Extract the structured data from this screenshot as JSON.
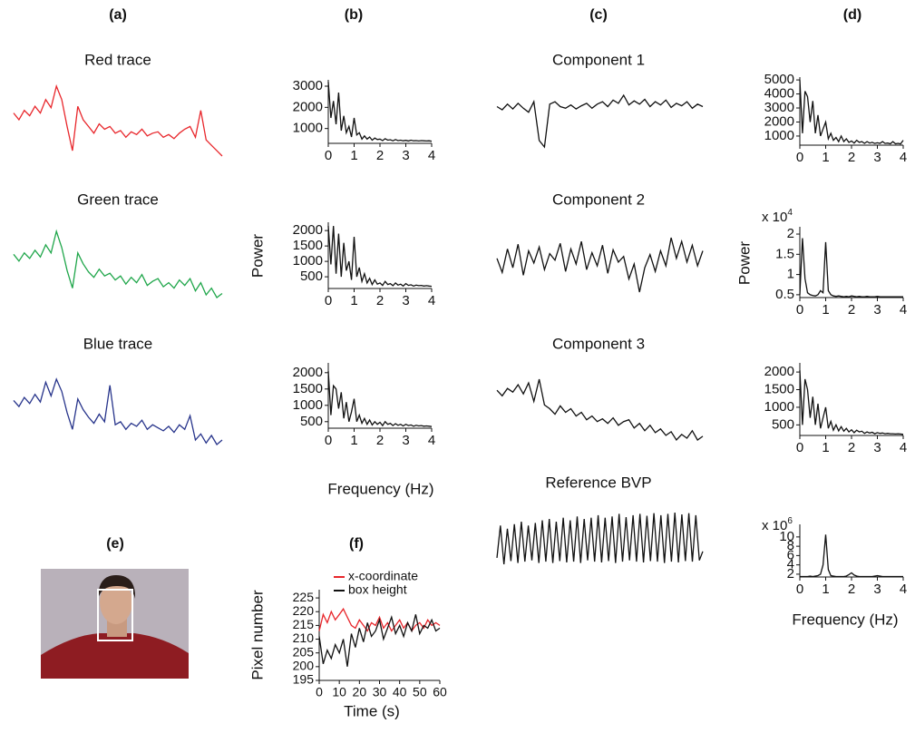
{
  "panel_labels": [
    "(a)",
    "(b)",
    "(c)",
    "(d)",
    "(e)",
    "(f)"
  ],
  "chart_data": [
    {
      "type": "line",
      "title": "Red trace",
      "color": "#e8262b",
      "values": [
        7,
        6.5,
        7.2,
        6.8,
        7.5,
        7,
        8,
        7.4,
        9,
        8,
        6,
        4.2,
        7.5,
        6.5,
        6,
        5.5,
        6.2,
        5.8,
        6,
        5.5,
        5.7,
        5.2,
        5.6,
        5.4,
        5.8,
        5.3,
        5.5,
        5.6,
        5.2,
        5.4,
        5.1,
        5.5,
        5.8,
        6,
        5.2,
        7.2,
        5,
        4.6,
        4.2,
        3.8
      ]
    },
    {
      "type": "line",
      "title": "Green trace",
      "color": "#1fa64a",
      "values": [
        7.5,
        7,
        7.6,
        7.2,
        7.8,
        7.3,
        8.2,
        7.6,
        9.2,
        8,
        6.3,
        5,
        7.6,
        6.8,
        6.2,
        5.8,
        6.4,
        5.9,
        6.1,
        5.6,
        5.9,
        5.3,
        5.8,
        5.4,
        6,
        5.2,
        5.5,
        5.7,
        5.1,
        5.4,
        5,
        5.6,
        5.2,
        5.7,
        4.8,
        5.4,
        4.5,
        5,
        4.3,
        4.6
      ]
    },
    {
      "type": "line",
      "title": "Blue trace",
      "color": "#27348b",
      "values": [
        7.2,
        6.8,
        7.4,
        7,
        7.6,
        7.1,
        8.4,
        7.5,
        8.6,
        7.8,
        6.4,
        5.3,
        7.3,
        6.6,
        6.1,
        5.7,
        6.3,
        5.8,
        8.2,
        5.6,
        5.8,
        5.3,
        5.7,
        5.5,
        5.9,
        5.3,
        5.6,
        5.4,
        5.2,
        5.5,
        5.1,
        5.6,
        5.3,
        6.2,
        4.6,
        5,
        4.4,
        4.9,
        4.3,
        4.6
      ]
    },
    {
      "type": "line",
      "color": "#111111",
      "x": [
        0,
        0.1,
        0.2,
        0.3,
        0.4,
        0.5,
        0.6,
        0.7,
        0.8,
        0.9,
        1,
        1.1,
        1.2,
        1.3,
        1.4,
        1.5,
        1.6,
        1.7,
        1.8,
        1.9,
        2,
        2.1,
        2.2,
        2.3,
        2.4,
        2.5,
        2.6,
        2.7,
        2.8,
        2.9,
        3,
        3.1,
        3.2,
        3.3,
        3.4,
        3.5,
        3.6,
        3.7,
        3.8,
        3.9,
        4
      ],
      "values": [
        3200,
        1500,
        2300,
        1200,
        2700,
        900,
        1600,
        800,
        1100,
        600,
        1500,
        700,
        800,
        500,
        650,
        500,
        600,
        450,
        550,
        480,
        500,
        430,
        520,
        450,
        470,
        420,
        480,
        430,
        450,
        420,
        440,
        410,
        450,
        420,
        430,
        410,
        430,
        420,
        410,
        420,
        400
      ],
      "xlim": [
        0,
        4
      ],
      "xticks": [
        0,
        1,
        2,
        3,
        4
      ],
      "ylim": [
        300,
        3300
      ],
      "yticks": [
        1000,
        2000,
        3000
      ]
    },
    {
      "type": "line",
      "color": "#111111",
      "ylabel": "Power",
      "x": [
        0,
        0.1,
        0.2,
        0.3,
        0.4,
        0.5,
        0.6,
        0.7,
        0.8,
        0.9,
        1,
        1.1,
        1.2,
        1.3,
        1.4,
        1.5,
        1.6,
        1.7,
        1.8,
        1.9,
        2,
        2.1,
        2.2,
        2.3,
        2.4,
        2.5,
        2.6,
        2.7,
        2.8,
        2.9,
        3,
        3.1,
        3.2,
        3.3,
        3.4,
        3.5,
        3.6,
        3.7,
        3.8,
        3.9,
        4
      ],
      "values": [
        2150,
        900,
        2150,
        600,
        1900,
        500,
        1600,
        700,
        1000,
        400,
        1800,
        500,
        800,
        350,
        600,
        300,
        450,
        250,
        400,
        260,
        300,
        220,
        350,
        250,
        280,
        210,
        300,
        230,
        260,
        200,
        280,
        220,
        240,
        200,
        230,
        210,
        220,
        200,
        210,
        200,
        190
      ],
      "xlim": [
        0,
        4
      ],
      "xticks": [
        0,
        1,
        2,
        3,
        4
      ],
      "ylim": [
        120,
        2270
      ],
      "yticks": [
        500,
        1000,
        1500,
        2000
      ]
    },
    {
      "type": "line",
      "color": "#111111",
      "xlabel": "Frequency (Hz)",
      "x": [
        0,
        0.1,
        0.2,
        0.3,
        0.4,
        0.5,
        0.6,
        0.7,
        0.8,
        0.9,
        1,
        1.1,
        1.2,
        1.3,
        1.4,
        1.5,
        1.6,
        1.7,
        1.8,
        1.9,
        2,
        2.1,
        2.2,
        2.3,
        2.4,
        2.5,
        2.6,
        2.7,
        2.8,
        2.9,
        3,
        3.1,
        3.2,
        3.3,
        3.4,
        3.5,
        3.6,
        3.7,
        3.8,
        3.9,
        4
      ],
      "values": [
        2050,
        700,
        1600,
        1500,
        900,
        1400,
        600,
        1100,
        500,
        800,
        1200,
        500,
        700,
        450,
        600,
        420,
        550,
        400,
        500,
        420,
        480,
        380,
        500,
        420,
        450,
        380,
        440,
        390,
        420,
        370,
        420,
        380,
        400,
        360,
        390,
        370,
        380,
        360,
        370,
        360,
        350
      ],
      "xlim": [
        0,
        4
      ],
      "xticks": [
        0,
        1,
        2,
        3,
        4
      ],
      "ylim": [
        300,
        2300
      ],
      "yticks": [
        500,
        1000,
        1500,
        2000
      ]
    },
    {
      "type": "line",
      "title": "Component 1",
      "color": "#111111",
      "values": [
        6.2,
        5.8,
        6.5,
        5.9,
        6.6,
        6,
        5.5,
        6.8,
        2,
        1.2,
        6.5,
        6.8,
        6.2,
        6,
        6.4,
        5.9,
        6.3,
        6.6,
        6,
        6.5,
        6.8,
        6.2,
        7,
        6.6,
        7.6,
        6.4,
        6.9,
        6.5,
        7.1,
        6.2,
        6.8,
        6.4,
        7,
        6.1,
        6.6,
        6.3,
        6.8,
        6,
        6.5,
        6.2
      ]
    },
    {
      "type": "line",
      "title": "Component 2",
      "color": "#111111",
      "values": [
        6,
        4.5,
        7,
        5,
        7.5,
        4.2,
        6.8,
        5.5,
        7.2,
        4.8,
        6.5,
        5.8,
        7.6,
        4.6,
        7,
        5.4,
        7.8,
        4.8,
        6.6,
        5.2,
        7.4,
        4.4,
        6.9,
        5.6,
        6.2,
        3.8,
        5.4,
        2.4,
        5,
        6.4,
        4.6,
        6.8,
        5.2,
        8.2,
        6,
        7.8,
        5.6,
        7.4,
        5.2,
        6.8
      ]
    },
    {
      "type": "line",
      "title": "Component 3",
      "color": "#111111",
      "values": [
        8,
        7.4,
        8.2,
        7.8,
        8.6,
        7.6,
        8.8,
        6.8,
        9.2,
        6.4,
        6,
        5.4,
        6.3,
        5.6,
        6,
        5.2,
        5.6,
        4.8,
        5.2,
        4.6,
        4.9,
        4.4,
        5,
        4.2,
        4.6,
        4.8,
        3.9,
        4.4,
        3.6,
        4.2,
        3.4,
        3.8,
        3.1,
        3.5,
        2.6,
        3.2,
        2.8,
        3.6,
        2.6,
        3
      ]
    },
    {
      "type": "line",
      "title": "Reference BVP",
      "color": "#111111",
      "values": [
        3,
        8,
        2,
        7.5,
        2.5,
        8.2,
        2.2,
        8.6,
        2.4,
        8,
        2.6,
        8.4,
        2.2,
        8.8,
        2.4,
        9,
        2.2,
        8.6,
        2.5,
        9.2,
        2.3,
        8.8,
        2.4,
        9.4,
        2.2,
        9,
        2.6,
        9.2,
        2.4,
        9.6,
        2.3,
        9.2,
        2.5,
        9.4,
        2.2,
        9.8,
        2.4,
        9.3,
        2.6,
        9.6,
        2.4,
        9.8,
        2.3,
        9.5,
        2.5,
        9.9,
        2.4,
        9.6,
        2.2,
        9.8,
        2.4,
        10,
        2.3,
        9.7,
        2.5,
        9.9,
        2.4,
        9.6,
        2.6,
        4
      ]
    },
    {
      "type": "line",
      "color": "#111111",
      "x": [
        0,
        0.1,
        0.2,
        0.3,
        0.4,
        0.5,
        0.6,
        0.7,
        0.8,
        0.9,
        1,
        1.1,
        1.2,
        1.3,
        1.4,
        1.5,
        1.6,
        1.7,
        1.8,
        1.9,
        2,
        2.1,
        2.2,
        2.3,
        2.4,
        2.5,
        2.6,
        2.7,
        2.8,
        2.9,
        3,
        3.1,
        3.2,
        3.3,
        3.4,
        3.5,
        3.6,
        3.7,
        3.8,
        3.9,
        4
      ],
      "values": [
        5000,
        1200,
        4200,
        3800,
        2000,
        3500,
        1200,
        2500,
        1000,
        1500,
        2000,
        800,
        1200,
        700,
        900,
        600,
        1000,
        600,
        800,
        550,
        650,
        500,
        700,
        550,
        600,
        480,
        600,
        500,
        550,
        470,
        520,
        480,
        600,
        470,
        500,
        450,
        600,
        450,
        480,
        440,
        700
      ],
      "xlim": [
        0,
        4
      ],
      "xticks": [
        0,
        1,
        2,
        3,
        4
      ],
      "ylim": [
        350,
        5200
      ],
      "yticks": [
        1000,
        2000,
        3000,
        4000,
        5000
      ]
    },
    {
      "type": "line",
      "color": "#111111",
      "ylabel": "Power",
      "scale_label": "x 10",
      "scale_exponent": "4",
      "x": [
        0,
        0.1,
        0.2,
        0.3,
        0.4,
        0.5,
        0.6,
        0.7,
        0.8,
        0.9,
        1,
        1.1,
        1.2,
        1.3,
        1.4,
        1.5,
        1.6,
        1.7,
        1.8,
        1.9,
        2,
        2.1,
        2.2,
        2.3,
        2.4,
        2.5,
        2.6,
        2.7,
        2.8,
        2.9,
        3,
        3.1,
        3.2,
        3.3,
        3.4,
        3.5,
        3.6,
        3.7,
        3.8,
        3.9,
        4
      ],
      "values": [
        0.5,
        1.9,
        0.9,
        0.55,
        0.5,
        0.48,
        0.47,
        0.5,
        0.6,
        0.55,
        1.8,
        0.6,
        0.5,
        0.47,
        0.46,
        0.47,
        0.46,
        0.45,
        0.46,
        0.45,
        0.47,
        0.46,
        0.45,
        0.46,
        0.45,
        0.45,
        0.46,
        0.45,
        0.45,
        0.45,
        0.46,
        0.45,
        0.45,
        0.45,
        0.45,
        0.45,
        0.45,
        0.45,
        0.45,
        0.45,
        0.45
      ],
      "xlim": [
        0,
        4
      ],
      "xticks": [
        0,
        1,
        2,
        3,
        4
      ],
      "ylim": [
        0.43,
        2.18
      ],
      "yticks": [
        0.5,
        1,
        1.5,
        2
      ]
    },
    {
      "type": "line",
      "color": "#111111",
      "x": [
        0,
        0.1,
        0.2,
        0.3,
        0.4,
        0.5,
        0.6,
        0.7,
        0.8,
        0.9,
        1,
        1.1,
        1.2,
        1.3,
        1.4,
        1.5,
        1.6,
        1.7,
        1.8,
        1.9,
        2,
        2.1,
        2.2,
        2.3,
        2.4,
        2.5,
        2.6,
        2.7,
        2.8,
        2.9,
        3,
        3.1,
        3.2,
        3.3,
        3.4,
        3.5,
        3.6,
        3.7,
        3.8,
        3.9,
        4
      ],
      "values": [
        2050,
        500,
        1800,
        1500,
        700,
        1300,
        500,
        1100,
        400,
        700,
        1000,
        400,
        600,
        350,
        500,
        330,
        450,
        320,
        400,
        300,
        360,
        280,
        350,
        300,
        320,
        260,
        300,
        270,
        290,
        250,
        280,
        260,
        270,
        250,
        260,
        250,
        250,
        240,
        250,
        240,
        230
      ],
      "xlim": [
        0,
        4
      ],
      "xticks": [
        0,
        1,
        2,
        3,
        4
      ],
      "ylim": [
        200,
        2260
      ],
      "yticks": [
        500,
        1000,
        1500,
        2000
      ]
    },
    {
      "type": "line",
      "color": "#111111",
      "xlabel": "Frequency (Hz)",
      "scale_label": "x 10",
      "scale_exponent": "6",
      "x": [
        0,
        0.1,
        0.2,
        0.3,
        0.4,
        0.5,
        0.6,
        0.7,
        0.8,
        0.9,
        1,
        1.1,
        1.2,
        1.3,
        1.4,
        1.5,
        1.6,
        1.7,
        1.8,
        1.9,
        2,
        2.1,
        2.2,
        2.3,
        2.4,
        2.5,
        2.6,
        2.7,
        2.8,
        2.9,
        3,
        3.1,
        3.2,
        3.3,
        3.4,
        3.5,
        3.6,
        3.7,
        3.8,
        3.9,
        4
      ],
      "values": [
        1.5,
        1.5,
        1.5,
        1.5,
        1.6,
        1.5,
        1.6,
        1.7,
        2,
        4,
        10.5,
        3,
        1.7,
        1.6,
        1.5,
        1.5,
        1.5,
        1.5,
        1.6,
        1.9,
        2.3,
        1.8,
        1.6,
        1.5,
        1.5,
        1.5,
        1.5,
        1.5,
        1.5,
        1.6,
        1.7,
        1.6,
        1.5,
        1.5,
        1.5,
        1.5,
        1.5,
        1.5,
        1.5,
        1.5,
        1.5
      ],
      "xlim": [
        0,
        4
      ],
      "xticks": [
        0,
        1,
        2,
        3,
        4
      ],
      "ylim": [
        1.4,
        12.7
      ],
      "yticks": [
        2,
        4,
        6,
        8,
        10
      ]
    },
    {
      "type": "line",
      "xlabel": "Time (s)",
      "ylabel": "Pixel number",
      "x": [
        0,
        2,
        4,
        6,
        8,
        10,
        12,
        14,
        16,
        18,
        20,
        22,
        24,
        26,
        28,
        30,
        32,
        34,
        36,
        38,
        40,
        42,
        44,
        46,
        48,
        50,
        52,
        54,
        56,
        58,
        60
      ],
      "series": [
        {
          "name": "x-coordinate",
          "color": "#e8262b",
          "values": [
            213,
            219,
            216,
            220,
            217,
            219,
            221,
            218,
            215,
            214,
            217,
            215,
            213,
            216,
            215,
            218,
            214,
            216,
            213,
            215,
            217,
            214,
            216,
            213,
            215,
            216,
            214,
            217,
            215,
            216,
            215
          ]
        },
        {
          "name": "box height",
          "color": "#111111",
          "values": [
            211,
            201,
            206,
            203,
            208,
            205,
            210,
            200,
            212,
            207,
            214,
            209,
            216,
            211,
            213,
            217,
            210,
            214,
            218,
            212,
            215,
            211,
            216,
            213,
            219,
            212,
            215,
            214,
            217,
            213,
            214
          ]
        }
      ],
      "xlim": [
        0,
        60
      ],
      "xticks": [
        0,
        10,
        20,
        30,
        40,
        50,
        60
      ],
      "ylim": [
        195,
        228
      ],
      "yticks": [
        195,
        200,
        205,
        210,
        215,
        220,
        225
      ]
    }
  ]
}
